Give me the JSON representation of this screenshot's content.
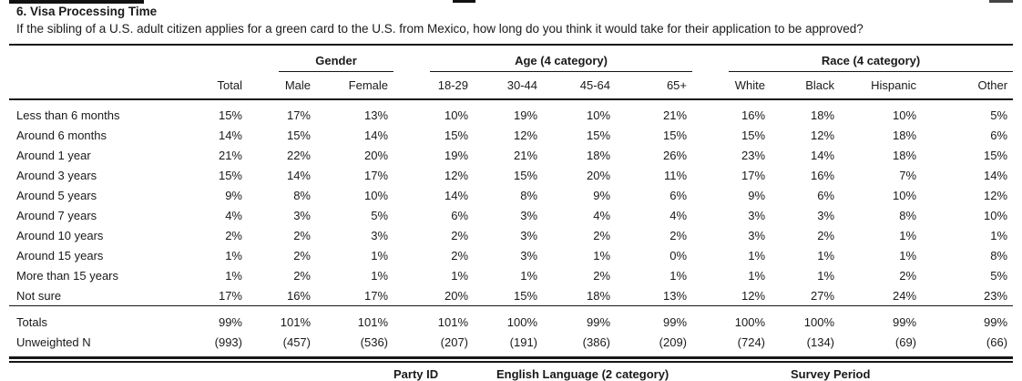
{
  "header": {
    "title": "6. Visa Processing Time",
    "question": "If the sibling of a U.S. adult citizen applies for a green card to the U.S. from Mexico, how long do you think it would take for their application to be approved?"
  },
  "table": {
    "col_groups": [
      {
        "label": "Gender",
        "span": 2
      },
      {
        "label": "Age (4 category)",
        "span": 4
      },
      {
        "label": "Race (4 category)",
        "span": 4
      }
    ],
    "columns": [
      "Total",
      "Male",
      "Female",
      "18-29",
      "30-44",
      "45-64",
      "65+",
      "White",
      "Black",
      "Hispanic",
      "Other"
    ],
    "rows": [
      {
        "label": "Less than 6 months",
        "values": [
          "15%",
          "17%",
          "13%",
          "10%",
          "19%",
          "10%",
          "21%",
          "16%",
          "18%",
          "10%",
          "5%"
        ]
      },
      {
        "label": "Around 6 months",
        "values": [
          "14%",
          "15%",
          "14%",
          "15%",
          "12%",
          "15%",
          "15%",
          "15%",
          "12%",
          "18%",
          "6%"
        ]
      },
      {
        "label": "Around 1 year",
        "values": [
          "21%",
          "22%",
          "20%",
          "19%",
          "21%",
          "18%",
          "26%",
          "23%",
          "14%",
          "18%",
          "15%"
        ]
      },
      {
        "label": "Around 3 years",
        "values": [
          "15%",
          "14%",
          "17%",
          "12%",
          "15%",
          "20%",
          "11%",
          "17%",
          "16%",
          "7%",
          "14%"
        ]
      },
      {
        "label": "Around 5 years",
        "values": [
          "9%",
          "8%",
          "10%",
          "14%",
          "8%",
          "9%",
          "6%",
          "9%",
          "6%",
          "10%",
          "12%"
        ]
      },
      {
        "label": "Around 7 years",
        "values": [
          "4%",
          "3%",
          "5%",
          "6%",
          "3%",
          "4%",
          "4%",
          "3%",
          "3%",
          "8%",
          "10%"
        ]
      },
      {
        "label": "Around 10 years",
        "values": [
          "2%",
          "2%",
          "3%",
          "2%",
          "3%",
          "2%",
          "2%",
          "3%",
          "2%",
          "1%",
          "1%"
        ]
      },
      {
        "label": "Around 15 years",
        "values": [
          "1%",
          "2%",
          "1%",
          "2%",
          "3%",
          "1%",
          "0%",
          "1%",
          "1%",
          "1%",
          "8%"
        ]
      },
      {
        "label": "More than 15 years",
        "values": [
          "1%",
          "2%",
          "1%",
          "1%",
          "1%",
          "2%",
          "1%",
          "1%",
          "1%",
          "2%",
          "5%"
        ]
      },
      {
        "label": "Not sure",
        "values": [
          "17%",
          "16%",
          "17%",
          "20%",
          "15%",
          "18%",
          "13%",
          "12%",
          "27%",
          "24%",
          "23%"
        ]
      }
    ],
    "footer_rows": [
      {
        "label": "Totals",
        "values": [
          "99%",
          "101%",
          "101%",
          "101%",
          "100%",
          "99%",
          "99%",
          "100%",
          "100%",
          "99%",
          "99%"
        ]
      },
      {
        "label": "Unweighted N",
        "values": [
          "(993)",
          "(457)",
          "(536)",
          "(207)",
          "(191)",
          "(386)",
          "(209)",
          "(724)",
          "(134)",
          "(69)",
          "(66)"
        ]
      }
    ]
  },
  "next_section_fragment": {
    "labels": [
      "Party ID",
      "English Language (2 category)",
      "Survey Period"
    ]
  },
  "colors": {
    "text": "#1a1a1a",
    "rule": "#161616",
    "background": "#ffffff"
  }
}
